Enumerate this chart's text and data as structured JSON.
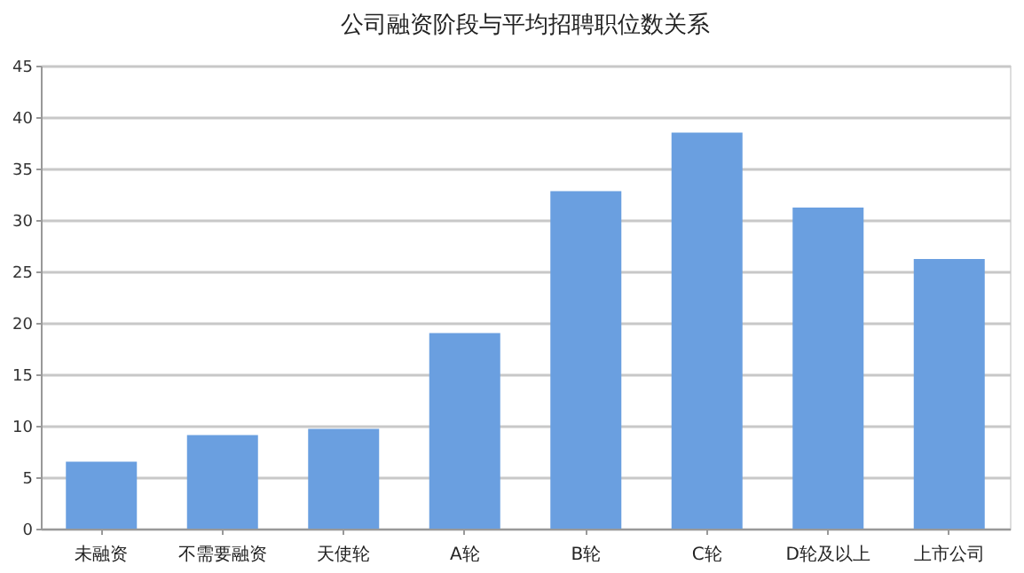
{
  "chart_data": {
    "type": "bar",
    "title": "公司融资阶段与平均招聘职位数关系",
    "categories": [
      "未融资",
      "不需要融资",
      "天使轮",
      "A轮",
      "B轮",
      "C轮",
      "D轮及以上",
      "上市公司"
    ],
    "values": [
      6.5,
      9.1,
      9.7,
      19.0,
      32.8,
      38.5,
      31.2,
      26.2
    ],
    "color": "#6a9fe0",
    "ylim": [
      0,
      45
    ],
    "yticks": [
      0,
      5,
      10,
      15,
      20,
      25,
      30,
      35,
      40,
      45
    ],
    "grid": "y"
  }
}
